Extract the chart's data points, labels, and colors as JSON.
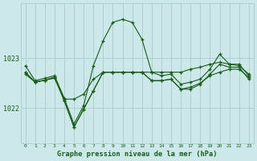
{
  "title": "Graphe pression niveau de la mer (hPa)",
  "background_color": "#cce8e8",
  "grid_color": "#aacccc",
  "line_color": "#1a5c1a",
  "ylim": [
    1021.3,
    1024.1
  ],
  "yticks": [
    1022,
    1023
  ],
  "xticks": [
    0,
    1,
    2,
    3,
    4,
    5,
    6,
    7,
    8,
    9,
    10,
    11,
    12,
    13,
    14,
    15,
    16,
    17,
    18,
    19,
    20,
    21,
    22,
    23
  ],
  "series1": [
    1022.85,
    1022.55,
    1022.6,
    1022.65,
    1022.2,
    1021.68,
    1022.05,
    1022.85,
    1023.35,
    1023.72,
    1023.78,
    1023.72,
    1023.38,
    1022.72,
    1022.65,
    1022.68,
    1022.48,
    1022.52,
    1022.58,
    1022.78,
    1023.08,
    1022.88,
    1022.88,
    1022.65
  ],
  "series2": [
    1022.68,
    1022.52,
    1022.56,
    1022.6,
    1022.18,
    1022.18,
    1022.28,
    1022.58,
    1022.72,
    1022.72,
    1022.72,
    1022.72,
    1022.72,
    1022.72,
    1022.72,
    1022.72,
    1022.72,
    1022.78,
    1022.82,
    1022.88,
    1022.92,
    1022.88,
    1022.85,
    1022.68
  ],
  "series3": [
    1022.72,
    1022.52,
    1022.56,
    1022.62,
    1022.15,
    1021.62,
    1021.98,
    1022.35,
    1022.72,
    1022.72,
    1022.72,
    1022.72,
    1022.72,
    1022.55,
    1022.55,
    1022.58,
    1022.38,
    1022.42,
    1022.5,
    1022.65,
    1022.72,
    1022.78,
    1022.78,
    1022.62
  ],
  "series4": [
    1022.72,
    1022.52,
    1022.56,
    1022.62,
    1022.15,
    1021.62,
    1021.98,
    1022.35,
    1022.72,
    1022.72,
    1022.72,
    1022.72,
    1022.72,
    1022.55,
    1022.55,
    1022.58,
    1022.38,
    1022.38,
    1022.48,
    1022.68,
    1022.88,
    1022.82,
    1022.82,
    1022.58
  ]
}
